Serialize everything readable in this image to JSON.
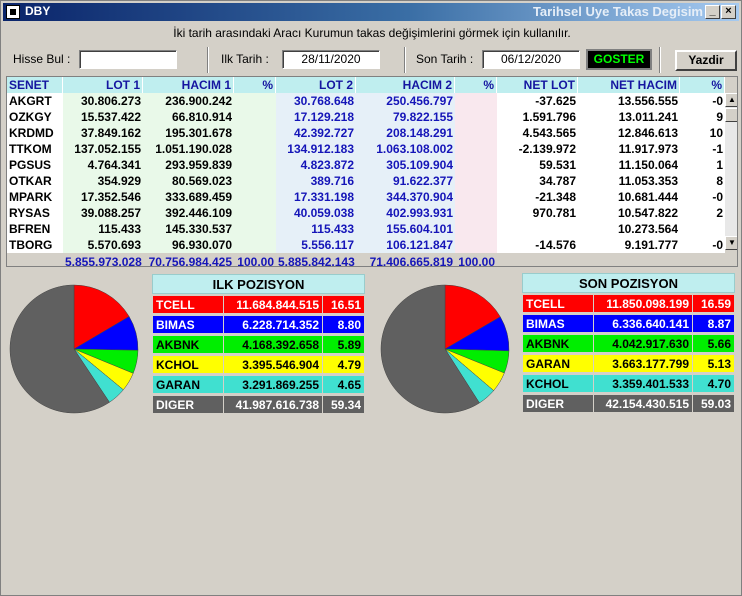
{
  "window": {
    "title": "DBY",
    "right_title": "Tarihsel Uye Takas Degisim",
    "min_label": "_",
    "close_label": "×"
  },
  "subtitle": "İki tarih arasındaki  Aracı Kurumun takas değişimlerini görmek için kullanılır.",
  "controls": {
    "hisse_bul_label": "Hisse Bul :",
    "hisse_bul_value": "",
    "ilk_tarih_label": "Ilk Tarih :",
    "ilk_tarih_value": "28/11/2020",
    "son_tarih_label": "Son Tarih :",
    "son_tarih_value": "06/12/2020",
    "goster_label": "GOSTER",
    "yazdir_label": "Yazdir"
  },
  "table": {
    "headers": [
      "SENET",
      "LOT 1",
      "HACIM 1",
      "%",
      "LOT 2",
      "HACIM 2",
      "%",
      "NET LOT",
      "NET HACIM",
      "%"
    ],
    "rows": [
      [
        "AKGRT",
        "30.806.273",
        "236.900.242",
        "",
        "30.768.648",
        "250.456.797",
        "",
        "-37.625",
        "13.556.555",
        "-0"
      ],
      [
        "OZKGY",
        "15.537.422",
        "66.810.914",
        "",
        "17.129.218",
        "79.822.155",
        "",
        "1.591.796",
        "13.011.241",
        "9"
      ],
      [
        "KRDMD",
        "37.849.162",
        "195.301.678",
        "",
        "42.392.727",
        "208.148.291",
        "",
        "4.543.565",
        "12.846.613",
        "10"
      ],
      [
        "TTKOM",
        "137.052.155",
        "1.051.190.028",
        "",
        "134.912.183",
        "1.063.108.002",
        "",
        "-2.139.972",
        "11.917.973",
        "-1"
      ],
      [
        "PGSUS",
        "4.764.341",
        "293.959.839",
        "",
        "4.823.872",
        "305.109.904",
        "",
        "59.531",
        "11.150.064",
        "1"
      ],
      [
        "OTKAR",
        "354.929",
        "80.569.023",
        "",
        "389.716",
        "91.622.377",
        "",
        "34.787",
        "11.053.353",
        "8"
      ],
      [
        "MPARK",
        "17.352.546",
        "333.689.459",
        "",
        "17.331.198",
        "344.370.904",
        "",
        "-21.348",
        "10.681.444",
        "-0"
      ],
      [
        "RYSAS",
        "39.088.257",
        "392.446.109",
        "",
        "40.059.038",
        "402.993.931",
        "",
        "970.781",
        "10.547.822",
        "2"
      ],
      [
        "BFREN",
        "115.433",
        "145.330.537",
        "",
        "115.433",
        "155.604.101",
        "",
        "",
        "10.273.564",
        ""
      ],
      [
        "TBORG",
        "5.570.693",
        "96.930.070",
        "",
        "5.556.117",
        "106.121.847",
        "",
        "-14.576",
        "9.191.777",
        "-0"
      ]
    ],
    "totals": [
      "",
      "5.855.973.028",
      "70.756.984.425",
      "100,00",
      "5.885.842.143",
      "71.406.665.819",
      "100,00",
      "",
      "",
      ""
    ]
  },
  "ilk_pozisyon": {
    "title": "ILK POZISYON",
    "rows": [
      {
        "name": "TCELL",
        "value": "11.684.844.515",
        "pct": "16.51",
        "share": 16.51,
        "color": "#ff0000",
        "text": "#ffffff"
      },
      {
        "name": "BIMAS",
        "value": "6.228.714.352",
        "pct": "8.80",
        "share": 8.8,
        "color": "#0000ff",
        "text": "#ffffff"
      },
      {
        "name": "AKBNK",
        "value": "4.168.392.658",
        "pct": "5.89",
        "share": 5.89,
        "color": "#00ee00",
        "text": "#000000"
      },
      {
        "name": "KCHOL",
        "value": "3.395.546.904",
        "pct": "4.79",
        "share": 4.79,
        "color": "#ffff00",
        "text": "#000000"
      },
      {
        "name": "GARAN",
        "value": "3.291.869.255",
        "pct": "4.65",
        "share": 4.65,
        "color": "#40e0d0",
        "text": "#000000"
      },
      {
        "name": "DIGER",
        "value": "41.987.616.738",
        "pct": "59.34",
        "share": 59.34,
        "color": "#606060",
        "text": "#ffffff"
      }
    ]
  },
  "son_pozisyon": {
    "title": "SON POZISYON",
    "rows": [
      {
        "name": "TCELL",
        "value": "11.850.098.199",
        "pct": "16.59",
        "share": 16.59,
        "color": "#ff0000",
        "text": "#ffffff"
      },
      {
        "name": "BIMAS",
        "value": "6.336.640.141",
        "pct": "8.87",
        "share": 8.87,
        "color": "#0000ff",
        "text": "#ffffff"
      },
      {
        "name": "AKBNK",
        "value": "4.042.917.630",
        "pct": "5.66",
        "share": 5.66,
        "color": "#00ee00",
        "text": "#000000"
      },
      {
        "name": "GARAN",
        "value": "3.663.177.799",
        "pct": "5.13",
        "share": 5.13,
        "color": "#ffff00",
        "text": "#000000"
      },
      {
        "name": "KCHOL",
        "value": "3.359.401.533",
        "pct": "4.70",
        "share": 4.7,
        "color": "#40e0d0",
        "text": "#000000"
      },
      {
        "name": "DIGER",
        "value": "42.154.430.515",
        "pct": "59.03",
        "share": 59.03,
        "color": "#606060",
        "text": "#ffffff"
      }
    ]
  }
}
